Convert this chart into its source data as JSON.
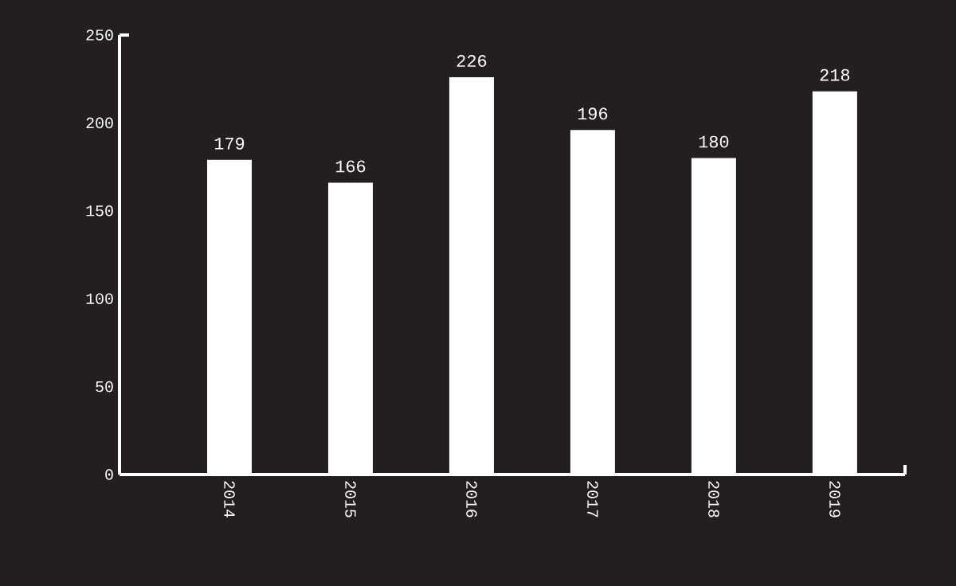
{
  "chart_data": {
    "type": "bar",
    "categories": [
      "2014",
      "2015",
      "2016",
      "2017",
      "2018",
      "2019"
    ],
    "values": [
      179,
      166,
      226,
      196,
      180,
      218
    ],
    "color": "#ffffff",
    "ylim": [
      0,
      250
    ],
    "yticks": [
      0,
      50,
      100,
      150,
      200,
      250
    ],
    "data_labels": true
  }
}
